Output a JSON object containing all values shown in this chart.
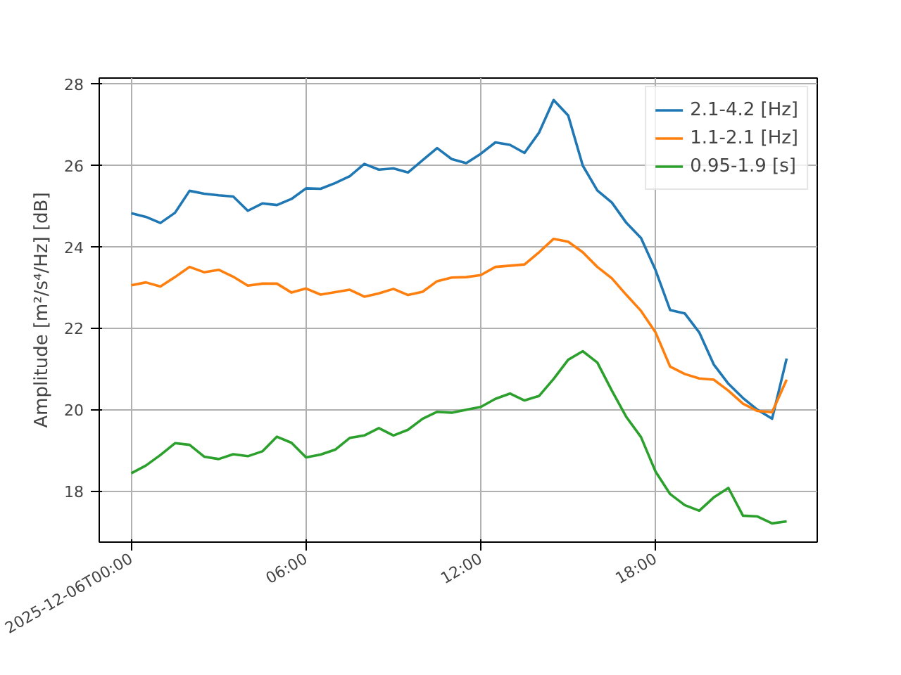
{
  "chart_data": {
    "type": "line",
    "ylabel": "Amplitude [m²/s⁴/Hz] [dB]",
    "x": [
      0,
      0.5,
      1,
      1.5,
      2,
      2.5,
      3,
      3.5,
      4,
      4.5,
      5,
      5.5,
      6,
      6.5,
      7,
      7.5,
      8,
      8.5,
      9,
      9.5,
      10,
      10.5,
      11,
      11.5,
      12,
      12.5,
      13,
      13.5,
      14,
      14.5,
      15,
      15.5,
      16,
      16.5,
      17,
      17.5,
      18,
      18.5,
      19,
      19.5,
      20,
      20.5,
      21,
      21.5,
      22,
      22.5
    ],
    "xlim": [
      -1.1,
      23.55
    ],
    "xticks": [
      {
        "value": 0,
        "label": "2025-12-06T00:00"
      },
      {
        "value": 6,
        "label": "06:00"
      },
      {
        "value": 12,
        "label": "12:00"
      },
      {
        "value": 18,
        "label": "18:00"
      }
    ],
    "ylim": [
      16.74,
      28.14
    ],
    "yticks": [
      18,
      20,
      22,
      24,
      26,
      28
    ],
    "grid": true,
    "legend": "top right",
    "series": [
      {
        "name": "2.1-4.2 [Hz]",
        "color": "#1f77b4",
        "values": [
          24.82,
          24.73,
          24.58,
          24.83,
          25.37,
          25.3,
          25.26,
          25.23,
          24.88,
          25.06,
          25.02,
          25.17,
          25.43,
          25.42,
          25.56,
          25.73,
          26.03,
          25.89,
          25.92,
          25.82,
          26.12,
          26.42,
          26.15,
          26.05,
          26.28,
          26.56,
          26.5,
          26.3,
          26.8,
          27.6,
          27.22,
          25.99,
          25.38,
          25.08,
          24.58,
          24.21,
          23.42,
          22.44,
          22.36,
          21.89,
          21.1,
          20.63,
          20.28,
          19.99,
          19.77,
          21.25
        ]
      },
      {
        "name": "1.1-2.1 [Hz]",
        "color": "#ff7f0e",
        "values": [
          23.05,
          23.12,
          23.02,
          23.25,
          23.5,
          23.37,
          23.43,
          23.26,
          23.04,
          23.09,
          23.09,
          22.87,
          22.97,
          22.82,
          22.88,
          22.94,
          22.77,
          22.85,
          22.96,
          22.81,
          22.89,
          23.15,
          23.24,
          23.25,
          23.3,
          23.5,
          23.53,
          23.56,
          23.86,
          24.19,
          24.12,
          23.86,
          23.5,
          23.22,
          22.81,
          22.42,
          21.89,
          21.05,
          20.87,
          20.76,
          20.73,
          20.46,
          20.14,
          19.96,
          19.93,
          20.73
        ]
      },
      {
        "name": "0.95-1.9 [s]",
        "color": "#2ca02c",
        "values": [
          18.43,
          18.62,
          18.88,
          19.17,
          19.13,
          18.84,
          18.78,
          18.9,
          18.85,
          18.97,
          19.33,
          19.18,
          18.82,
          18.89,
          19.01,
          19.3,
          19.36,
          19.54,
          19.36,
          19.5,
          19.77,
          19.94,
          19.92,
          19.99,
          20.06,
          20.26,
          20.39,
          20.22,
          20.33,
          20.75,
          21.22,
          21.43,
          21.15,
          20.46,
          19.81,
          19.32,
          18.47,
          17.92,
          17.65,
          17.51,
          17.84,
          18.07,
          17.39,
          17.37,
          17.2,
          17.25
        ]
      }
    ]
  }
}
